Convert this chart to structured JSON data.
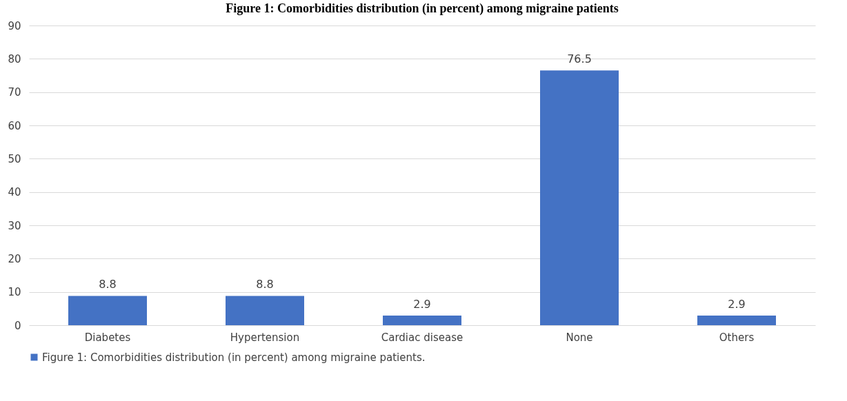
{
  "chart_data": {
    "type": "bar",
    "title": "Figure 1: Comorbidities distribution (in percent) among migraine patients",
    "categories": [
      "Diabetes",
      "Hypertension",
      "Cardiac disease",
      "None",
      "Others"
    ],
    "series": [
      {
        "name": "Figure 1: Comorbidities distribution (in percent) among migraine patients.",
        "color": "#4472c4",
        "values": [
          8.8,
          8.8,
          2.9,
          76.5,
          2.9
        ]
      }
    ],
    "ylim": [
      0,
      90
    ],
    "yticks": [
      0,
      10,
      20,
      30,
      40,
      50,
      60,
      70,
      80,
      90
    ],
    "grid": "y",
    "legend": "bottom",
    "data_labels": true
  }
}
